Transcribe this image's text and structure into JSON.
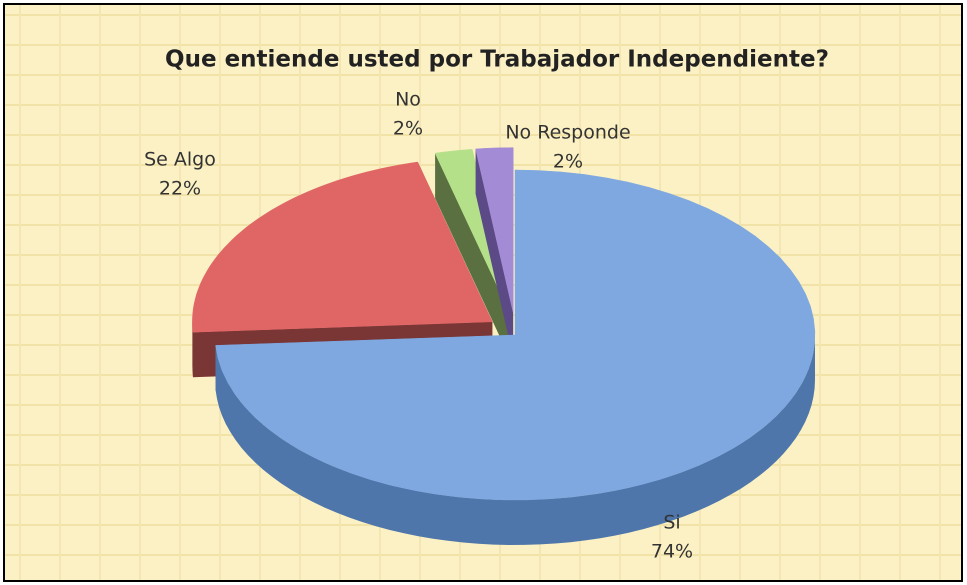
{
  "chart_data": {
    "type": "pie3d",
    "title": "Que entiende usted por Trabajador Independiente?",
    "categories": [
      "Si",
      "Se Algo",
      "No",
      "No Responde"
    ],
    "values": [
      74,
      22,
      2,
      2
    ],
    "value_labels": [
      "74%",
      "22%",
      "2%",
      "2%"
    ],
    "colors": [
      "#7fa8e0",
      "#e06666",
      "#b5e08a",
      "#a48bd6"
    ],
    "side_colors": [
      "#4f76ab",
      "#7a3535",
      "#5a7040",
      "#5c4a86"
    ]
  }
}
